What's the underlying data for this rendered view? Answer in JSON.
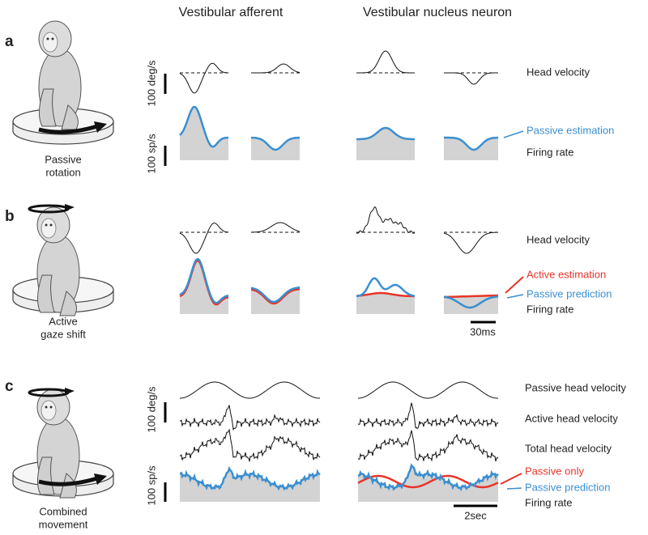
{
  "headers": [
    "Vestibular afferent",
    "Vestibular nucleus neuron"
  ],
  "panels": [
    {
      "label": "a",
      "caption": [
        "Passive",
        "rotation"
      ],
      "scale_labels": [
        "100 deg/s",
        "100 sp/s"
      ],
      "trace_labels": [
        "Head velocity",
        "Passive estimation",
        "Firing rate"
      ]
    },
    {
      "label": "b",
      "caption": [
        "Active",
        "gaze shift"
      ],
      "trace_labels": [
        "Head velocity",
        "Active estimation",
        "Passive prediction",
        "Firing rate"
      ],
      "time_scale": "30ms"
    },
    {
      "label": "c",
      "caption": [
        "Combined",
        "movement"
      ],
      "scale_labels": [
        "100 deg/s",
        "100 sp/s"
      ],
      "trace_labels": [
        "Passive head velocity",
        "Active head velocity",
        "Total head velocity",
        "Passive only",
        "Passive prediction",
        "Firing rate"
      ],
      "time_scale": "2sec"
    }
  ]
}
